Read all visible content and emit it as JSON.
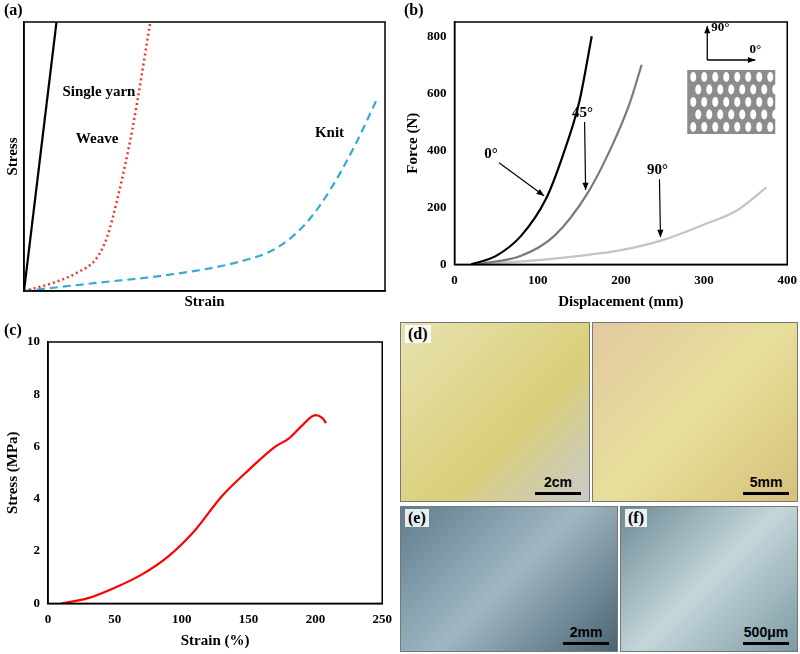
{
  "chart_data": [
    {
      "type": "line",
      "title": "(a)",
      "x_label": "Strain",
      "y_label": "Stress",
      "xlim": [
        0,
        10
      ],
      "ylim": [
        0,
        10
      ],
      "tick_labels": false,
      "grid": false,
      "series": [
        {
          "name": "Single yarn",
          "color": "#000000",
          "line_style": "solid",
          "marker": "none",
          "x": [
            0,
            0.9
          ],
          "values": [
            0,
            10
          ]
        },
        {
          "name": "Weave",
          "color": "#e8392f",
          "line_style": "dotted",
          "marker": "none",
          "x": [
            0,
            0.8,
            1.5,
            2.0,
            2.3,
            2.6,
            3.0,
            3.5
          ],
          "values": [
            0,
            0.3,
            0.7,
            1.2,
            2,
            3.5,
            6,
            10
          ]
        },
        {
          "name": "Knit",
          "color": "#3aa9d6",
          "line_style": "dashed",
          "marker": "none",
          "x": [
            0,
            2,
            4,
            6,
            7,
            7.8,
            8.5,
            9.2,
            9.8
          ],
          "values": [
            0,
            0.3,
            0.6,
            1.1,
            1.6,
            2.5,
            3.8,
            5.5,
            7.2
          ]
        }
      ]
    },
    {
      "type": "line",
      "title": "(b)",
      "x_label": "Displacement (mm)",
      "y_label": "Force (N)",
      "xlim": [
        0,
        400
      ],
      "ylim": [
        0,
        850
      ],
      "xticks": [
        0,
        100,
        200,
        300,
        400
      ],
      "yticks": [
        0,
        200,
        400,
        600,
        800
      ],
      "grid": false,
      "inset_labels": [
        "90°",
        "0°"
      ],
      "series": [
        {
          "name": "0°",
          "color": "#000000",
          "line_style": "solid",
          "marker": "none",
          "x": [
            20,
            50,
            80,
            110,
            130,
            150,
            165
          ],
          "values": [
            0,
            30,
            100,
            230,
            380,
            570,
            800
          ]
        },
        {
          "name": "45°",
          "color": "#7a7a7a",
          "line_style": "solid",
          "marker": "none",
          "x": [
            25,
            80,
            120,
            160,
            190,
            210,
            225
          ],
          "values": [
            0,
            30,
            100,
            250,
            420,
            560,
            700
          ]
        },
        {
          "name": "90°",
          "color": "#c4c4c4",
          "line_style": "solid",
          "marker": "none",
          "x": [
            20,
            100,
            200,
            250,
            300,
            340,
            375
          ],
          "values": [
            0,
            15,
            50,
            85,
            140,
            190,
            270
          ]
        }
      ]
    },
    {
      "type": "line",
      "title": "(c)",
      "x_label": "Strain (%)",
      "y_label": "Stress (MPa)",
      "xlim": [
        0,
        250
      ],
      "ylim": [
        0,
        10
      ],
      "xticks": [
        0,
        50,
        100,
        150,
        200,
        250
      ],
      "yticks": [
        0,
        2,
        4,
        6,
        8,
        10
      ],
      "grid": false,
      "series": [
        {
          "name": "Stress",
          "color": "#ff0000",
          "line_style": "solid",
          "marker": "none",
          "x": [
            10,
            30,
            50,
            70,
            90,
            110,
            130,
            150,
            170,
            180,
            190,
            200,
            205,
            208
          ],
          "values": [
            0,
            0.2,
            0.6,
            1.1,
            1.8,
            2.8,
            4.1,
            5.1,
            6.0,
            6.3,
            6.8,
            7.2,
            7.1,
            6.9
          ]
        }
      ]
    }
  ],
  "photo_panels": [
    {
      "label": "(d)",
      "scale_bars": [
        "2cm",
        "5mm"
      ]
    },
    {
      "label": "(e)",
      "scale_bars": [
        "2mm"
      ]
    },
    {
      "label": "(f)",
      "scale_bars": [
        "500μm"
      ]
    }
  ]
}
